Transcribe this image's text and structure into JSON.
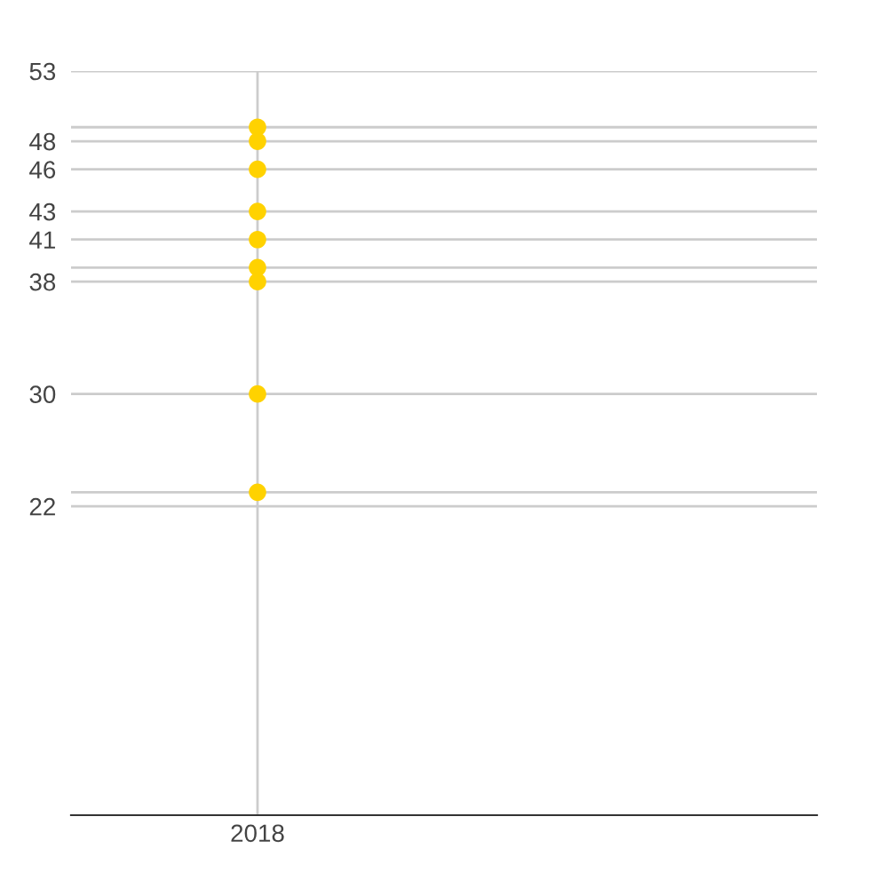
{
  "chart_data": {
    "type": "scatter",
    "categories": [
      "2018"
    ],
    "series": [
      {
        "color": "#ffd200",
        "values": [
          49
        ]
      },
      {
        "color": "#ffd200",
        "values": [
          48
        ]
      },
      {
        "color": "#ffd200",
        "values": [
          46
        ]
      },
      {
        "color": "#ffd200",
        "values": [
          43
        ]
      },
      {
        "color": "#ffd200",
        "values": [
          41
        ]
      },
      {
        "color": "#ffd200",
        "values": [
          39
        ]
      },
      {
        "color": "#ffd200",
        "values": [
          38
        ]
      },
      {
        "color": "#ffd200",
        "values": [
          30
        ]
      },
      {
        "color": "#ffd200",
        "values": [
          23
        ]
      }
    ],
    "marker": "circle",
    "ylim": [
      0,
      53
    ],
    "yticks": [
      22,
      {
        "value": 23,
        "label": null
      },
      30,
      38,
      {
        "value": 39,
        "label": null
      },
      41,
      43,
      46,
      48,
      {
        "value": 49,
        "label": null
      },
      53
    ],
    "grid": true
  }
}
